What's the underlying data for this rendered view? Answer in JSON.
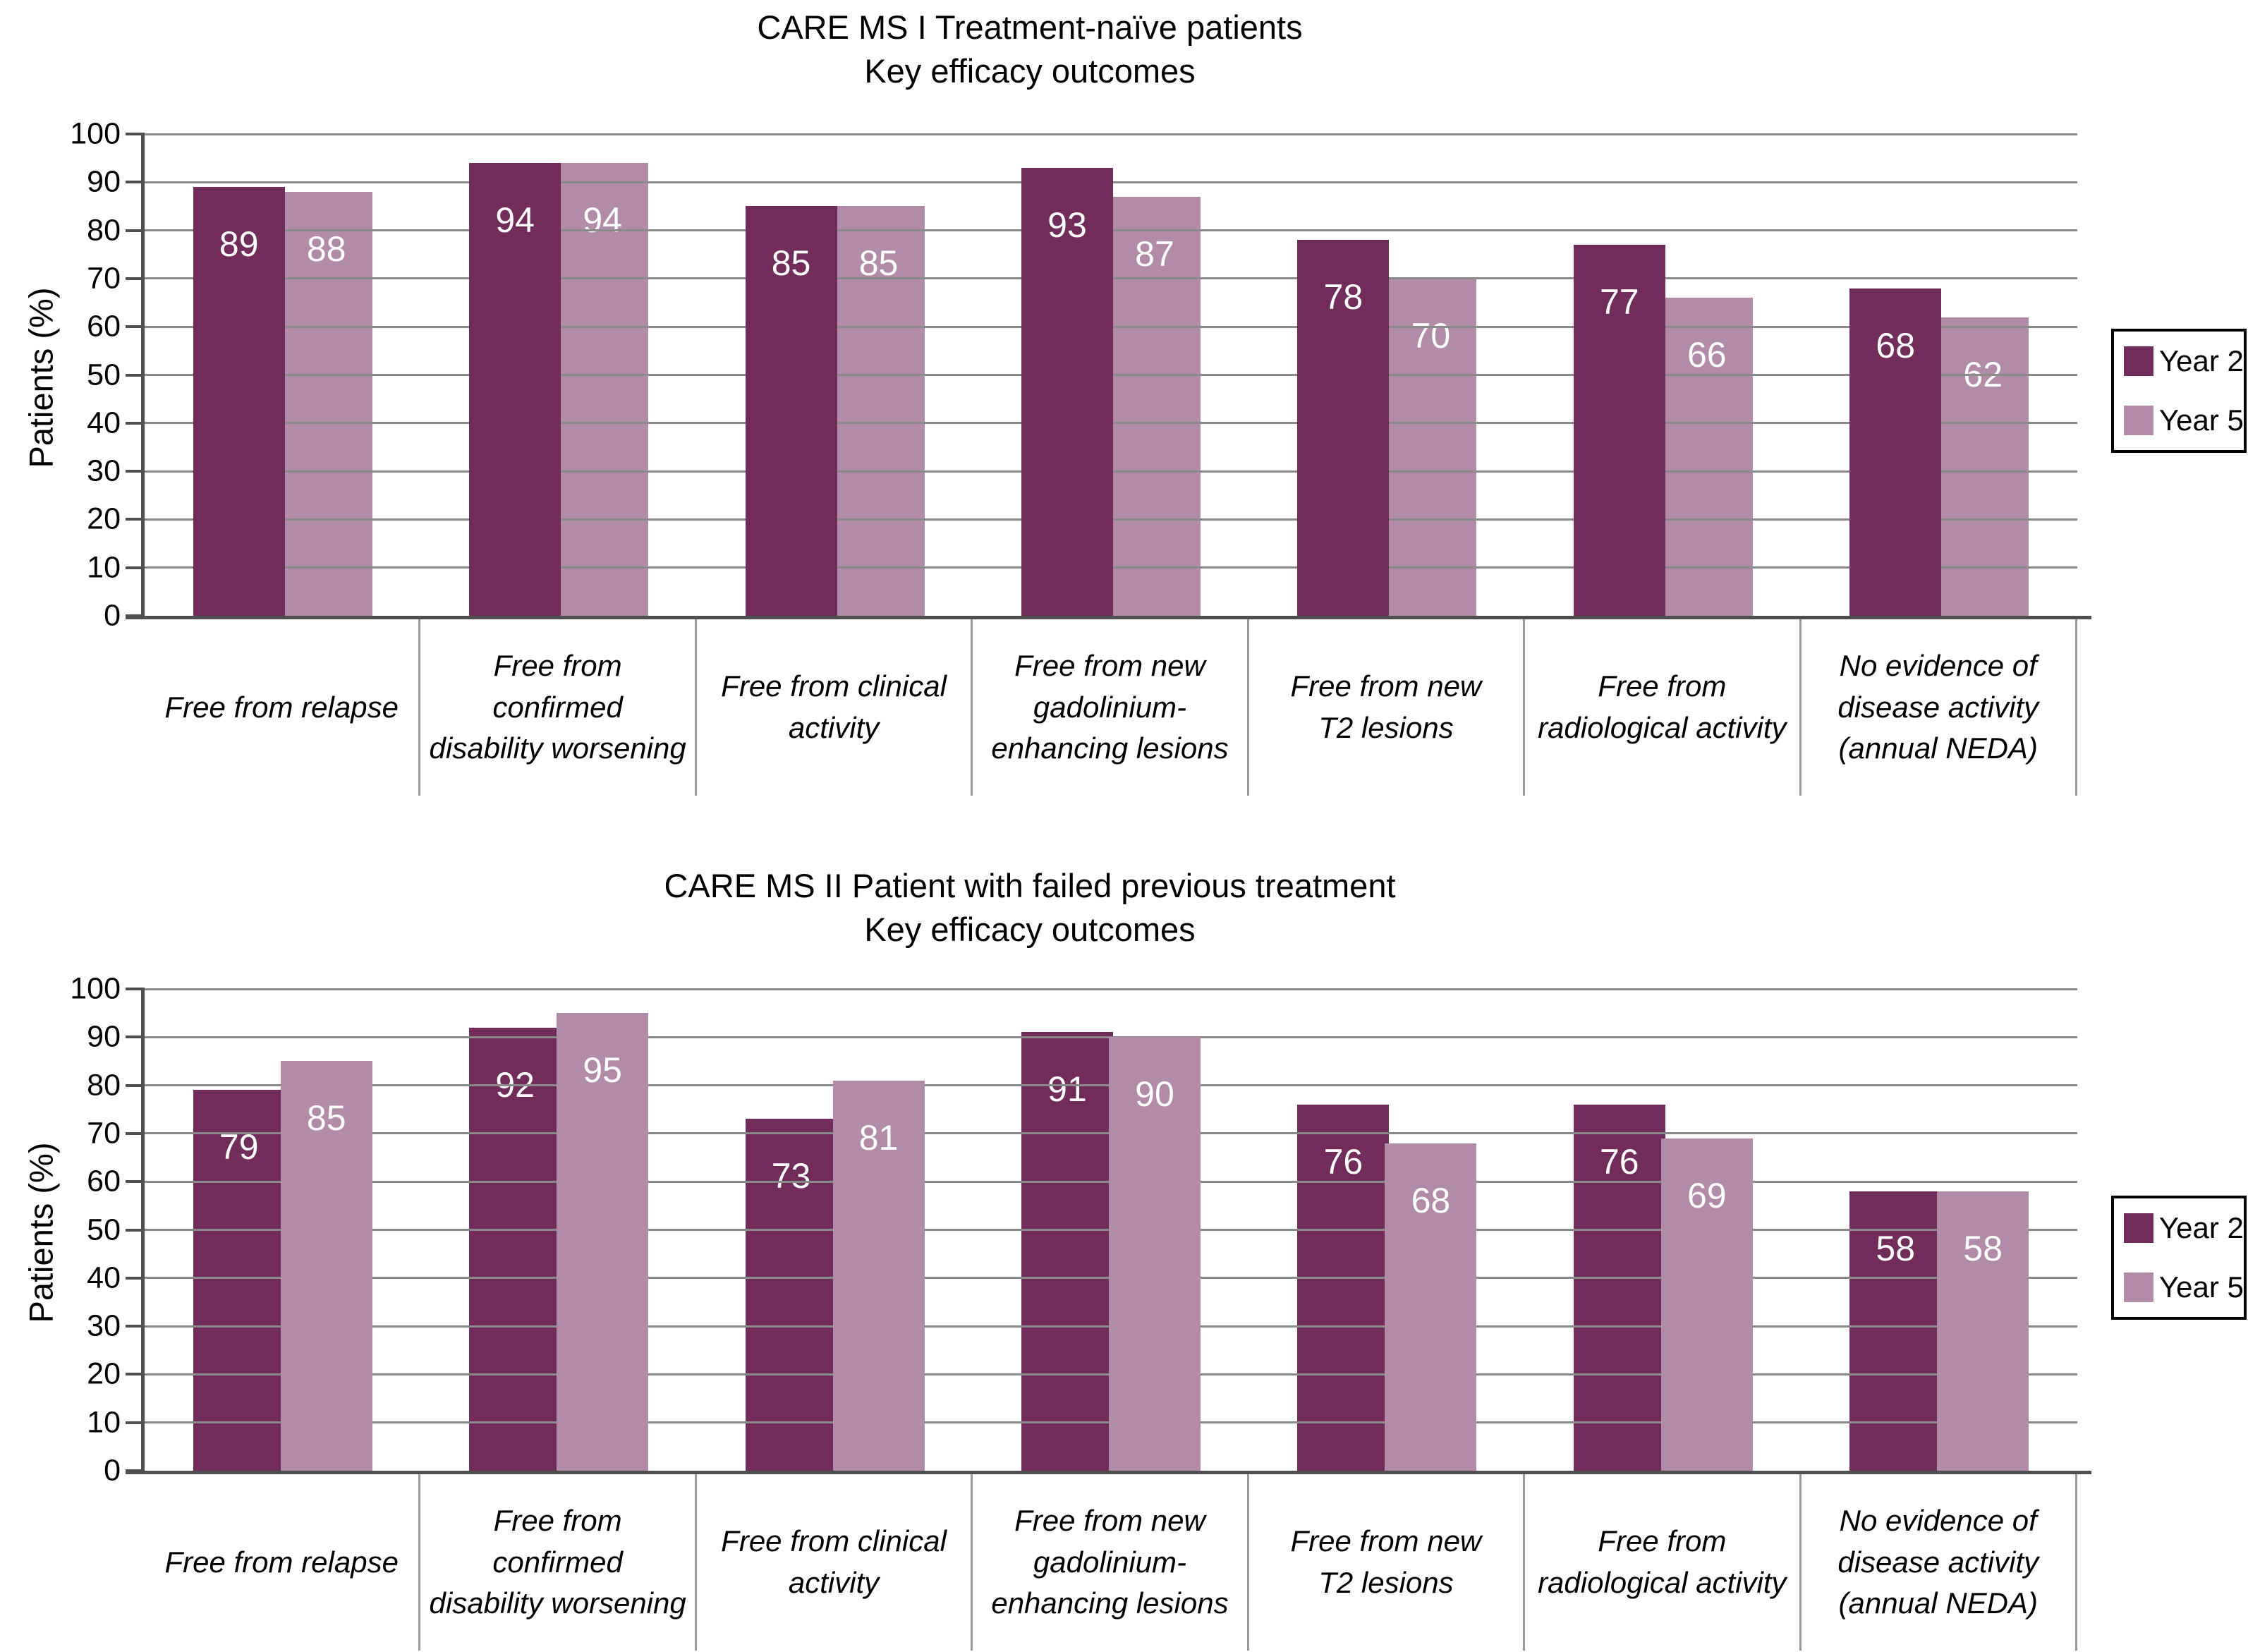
{
  "colors": {
    "year2": "#722C5C",
    "year5": "#B18BA8",
    "gridline": "#8a8a8a",
    "axis": "#4f4f4f",
    "separator": "#9a9a9a",
    "bar_value_text": "#ffffff",
    "text": "#000000",
    "background": "#ffffff"
  },
  "legend": {
    "position": "right",
    "items": [
      {
        "label": "Year 2",
        "color_key": "year2"
      },
      {
        "label": "Year 5",
        "color_key": "year5"
      }
    ]
  },
  "chart_data": [
    {
      "type": "bar",
      "title": "CARE MS I Treatment-naïve patients Key efficacy outcomes",
      "title_lines": [
        "CARE MS I Treatment-naïve patients",
        "Key efficacy outcomes"
      ],
      "ylabel": "Patients (%)",
      "xlabel": "",
      "ylim": [
        0,
        100
      ],
      "yticks": [
        0,
        10,
        20,
        30,
        40,
        50,
        60,
        70,
        80,
        90,
        100
      ],
      "grid": true,
      "legend_position": "right",
      "categories": [
        "Free from relapse",
        "Free from confirmed disability worsening",
        "Free from clinical activity",
        "Free from new gadolinium-enhancing lesions",
        "Free from new T2 lesions",
        "Free from radiological activity",
        "No evidence of disease activity (annual NEDA)"
      ],
      "category_lines": [
        [
          "Free from relapse"
        ],
        [
          "Free from",
          "confirmed",
          "disability worsening"
        ],
        [
          "Free from clinical",
          "activity"
        ],
        [
          "Free from new",
          "gadolinium-",
          "enhancing lesions"
        ],
        [
          "Free from new",
          "T2 lesions"
        ],
        [
          "Free from",
          "radiological activity"
        ],
        [
          "No evidence of",
          "disease activity",
          "(annual NEDA)"
        ]
      ],
      "series": [
        {
          "name": "Year 2",
          "values": [
            89,
            94,
            85,
            93,
            78,
            77,
            68
          ]
        },
        {
          "name": "Year 5",
          "values": [
            88,
            94,
            85,
            87,
            70,
            66,
            62
          ]
        }
      ]
    },
    {
      "type": "bar",
      "title": "CARE MS II Patient with failed previous treatment Key efficacy outcomes",
      "title_lines": [
        "CARE MS II Patient with failed previous treatment",
        "Key efficacy outcomes"
      ],
      "ylabel": "Patients (%)",
      "xlabel": "",
      "ylim": [
        0,
        100
      ],
      "yticks": [
        0,
        10,
        20,
        30,
        40,
        50,
        60,
        70,
        80,
        90,
        100
      ],
      "grid": true,
      "legend_position": "right",
      "categories": [
        "Free from relapse",
        "Free from confirmed disability worsening",
        "Free from clinical activity",
        "Free from new gadolinium-enhancing lesions",
        "Free from new T2 lesions",
        "Free from radiological activity",
        "No evidence of disease activity (annual NEDA)"
      ],
      "category_lines": [
        [
          "Free from relapse"
        ],
        [
          "Free from",
          "confirmed",
          "disability worsening"
        ],
        [
          "Free from clinical",
          "activity"
        ],
        [
          "Free from new",
          "gadolinium-",
          "enhancing lesions"
        ],
        [
          "Free from new",
          "T2 lesions"
        ],
        [
          "Free from",
          "radiological activity"
        ],
        [
          "No evidence of",
          "disease activity",
          "(annual NEDA)"
        ]
      ],
      "series": [
        {
          "name": "Year 2",
          "values": [
            79,
            92,
            73,
            91,
            76,
            76,
            58
          ]
        },
        {
          "name": "Year 5",
          "values": [
            85,
            95,
            81,
            90,
            68,
            69,
            58
          ]
        }
      ]
    }
  ]
}
